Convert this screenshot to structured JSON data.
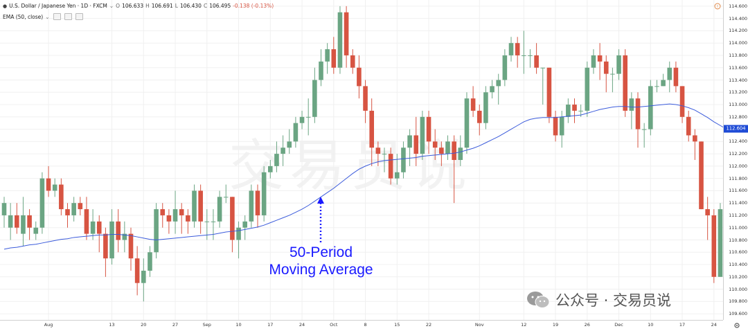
{
  "header": {
    "symbol": "U.S. Dollar / Japanese Yen · 1D · FXCM",
    "ohlc": {
      "o_label": "O",
      "o": "106.633",
      "h_label": "H",
      "h": "106.691",
      "l_label": "L",
      "l": "106.430",
      "c_label": "C",
      "c": "106.495",
      "change": "-0.138 (-0.13%)"
    },
    "indicator": "EMA (50, close)"
  },
  "annotation": {
    "line1": "50-Period",
    "line2": "Moving Average"
  },
  "watermark": {
    "text": "交易员说"
  },
  "brand": {
    "text": "公众号 · 交易员说"
  },
  "last_price_label": "112.604",
  "colors": {
    "up": "#6ba583",
    "down": "#d75442",
    "ema": "#3b5bdb",
    "annotation": "#1a1aff",
    "last_price_bg": "#1e4bd6"
  },
  "icons": [
    "dropdown-icon",
    "eye-icon",
    "settings-icon",
    "alert-icon",
    "gear-icon",
    "wechat-icon"
  ],
  "chart_data": {
    "type": "candlestick",
    "ylim": [
      109.5,
      114.7
    ],
    "y_ticks": [
      "109.600",
      "109.800",
      "110.000",
      "110.200",
      "110.400",
      "110.600",
      "110.800",
      "111.000",
      "111.200",
      "111.400",
      "111.600",
      "111.800",
      "112.000",
      "112.200",
      "112.400",
      "112.600",
      "112.800",
      "113.000",
      "113.200",
      "113.400",
      "113.600",
      "113.800",
      "114.000",
      "114.200",
      "114.400",
      "114.600"
    ],
    "x_ticks": [
      {
        "label": "Aug",
        "i": 7
      },
      {
        "label": "13",
        "i": 17
      },
      {
        "label": "20",
        "i": 22
      },
      {
        "label": "27",
        "i": 27
      },
      {
        "label": "Sep",
        "i": 32
      },
      {
        "label": "10",
        "i": 37
      },
      {
        "label": "17",
        "i": 42
      },
      {
        "label": "24",
        "i": 47
      },
      {
        "label": "Oct",
        "i": 52
      },
      {
        "label": "8",
        "i": 57
      },
      {
        "label": "15",
        "i": 62
      },
      {
        "label": "22",
        "i": 67
      },
      {
        "label": "Nov",
        "i": 75
      },
      {
        "label": "12",
        "i": 82
      },
      {
        "label": "19",
        "i": 87
      },
      {
        "label": "26",
        "i": 92
      },
      {
        "label": "Dec",
        "i": 97
      },
      {
        "label": "10",
        "i": 102
      },
      {
        "label": "17",
        "i": 107
      },
      {
        "label": "24",
        "i": 112
      }
    ],
    "candles": [
      [
        111.2,
        111.4,
        111.0,
        111.5
      ],
      [
        111.0,
        111.2,
        110.8,
        111.4
      ],
      [
        111.2,
        111.0,
        110.9,
        111.4
      ],
      [
        110.9,
        111.2,
        110.7,
        111.5
      ],
      [
        111.2,
        111.0,
        110.8,
        111.3
      ],
      [
        110.9,
        111.0,
        110.8,
        111.1
      ],
      [
        111.0,
        111.8,
        110.9,
        111.9
      ],
      [
        111.8,
        111.6,
        111.5,
        112.0
      ],
      [
        111.6,
        111.7,
        111.5,
        111.8
      ],
      [
        111.7,
        111.3,
        111.2,
        111.8
      ],
      [
        111.3,
        111.2,
        111.0,
        111.4
      ],
      [
        111.2,
        111.4,
        111.1,
        111.5
      ],
      [
        111.4,
        111.3,
        111.2,
        111.5
      ],
      [
        111.3,
        110.9,
        110.8,
        111.5
      ],
      [
        110.9,
        111.1,
        110.8,
        111.3
      ],
      [
        111.1,
        110.9,
        110.6,
        111.2
      ],
      [
        110.9,
        110.5,
        110.2,
        111.0
      ],
      [
        110.5,
        111.1,
        110.4,
        111.3
      ],
      [
        111.1,
        110.8,
        110.6,
        111.3
      ],
      [
        110.8,
        110.9,
        110.6,
        111.1
      ],
      [
        110.9,
        110.5,
        110.3,
        111.0
      ],
      [
        110.5,
        110.1,
        109.9,
        110.7
      ],
      [
        110.1,
        110.3,
        109.8,
        110.5
      ],
      [
        110.3,
        110.6,
        110.2,
        110.7
      ],
      [
        110.6,
        111.3,
        110.5,
        111.4
      ],
      [
        111.3,
        111.2,
        111.0,
        111.4
      ],
      [
        111.2,
        111.1,
        110.9,
        111.3
      ],
      [
        111.1,
        111.3,
        110.9,
        111.6
      ],
      [
        111.3,
        111.2,
        110.9,
        111.4
      ],
      [
        111.2,
        111.1,
        110.9,
        111.3
      ],
      [
        111.1,
        111.6,
        111.0,
        111.7
      ],
      [
        111.6,
        111.1,
        110.9,
        111.7
      ],
      [
        111.1,
        111.1,
        110.8,
        111.3
      ],
      [
        111.1,
        111.1,
        110.8,
        111.3
      ],
      [
        111.1,
        111.5,
        111.0,
        111.6
      ],
      [
        111.5,
        111.5,
        111.4,
        111.7
      ],
      [
        111.5,
        110.8,
        110.6,
        111.5
      ],
      [
        110.8,
        111.0,
        110.5,
        111.1
      ],
      [
        111.0,
        111.1,
        110.8,
        111.2
      ],
      [
        111.1,
        111.6,
        111.0,
        111.7
      ],
      [
        111.6,
        111.2,
        111.0,
        111.7
      ],
      [
        111.2,
        111.9,
        111.1,
        112.0
      ],
      [
        111.9,
        112.0,
        111.8,
        112.1
      ],
      [
        112.0,
        112.2,
        111.9,
        112.4
      ],
      [
        112.2,
        112.3,
        112.0,
        112.5
      ],
      [
        112.3,
        112.4,
        112.2,
        112.6
      ],
      [
        112.4,
        112.7,
        112.3,
        112.8
      ],
      [
        112.7,
        112.8,
        112.6,
        112.9
      ],
      [
        112.8,
        112.8,
        112.5,
        113.1
      ],
      [
        112.8,
        113.4,
        112.7,
        113.6
      ],
      [
        113.4,
        113.7,
        113.3,
        113.9
      ],
      [
        113.7,
        113.9,
        113.5,
        114.0
      ],
      [
        113.9,
        113.6,
        113.5,
        114.1
      ],
      [
        113.6,
        114.5,
        113.5,
        114.6
      ],
      [
        114.5,
        113.8,
        113.6,
        114.6
      ],
      [
        113.8,
        113.6,
        113.5,
        113.9
      ],
      [
        113.6,
        113.3,
        113.1,
        113.8
      ],
      [
        113.3,
        112.9,
        112.7,
        113.4
      ],
      [
        112.9,
        112.3,
        112.0,
        113.1
      ],
      [
        112.3,
        112.2,
        112.0,
        112.4
      ],
      [
        112.2,
        112.2,
        111.9,
        112.3
      ],
      [
        112.2,
        111.8,
        111.7,
        112.3
      ],
      [
        111.8,
        111.9,
        111.7,
        112.2
      ],
      [
        111.9,
        112.3,
        111.8,
        112.4
      ],
      [
        112.3,
        112.5,
        112.0,
        112.6
      ],
      [
        112.5,
        112.2,
        112.0,
        112.8
      ],
      [
        112.2,
        112.8,
        112.1,
        112.9
      ],
      [
        112.8,
        112.4,
        112.2,
        112.9
      ],
      [
        112.4,
        112.3,
        112.1,
        112.6
      ],
      [
        112.3,
        112.2,
        112.0,
        112.4
      ],
      [
        112.2,
        112.4,
        112.1,
        112.5
      ],
      [
        112.4,
        112.1,
        111.4,
        112.5
      ],
      [
        112.1,
        112.3,
        112.0,
        112.5
      ],
      [
        112.3,
        113.1,
        112.2,
        113.2
      ],
      [
        113.1,
        112.9,
        112.8,
        113.3
      ],
      [
        112.9,
        112.7,
        112.5,
        113.0
      ],
      [
        112.7,
        113.2,
        112.6,
        113.3
      ],
      [
        113.2,
        113.3,
        113.1,
        113.4
      ],
      [
        113.3,
        113.4,
        113.0,
        113.5
      ],
      [
        113.4,
        113.8,
        113.3,
        113.9
      ],
      [
        113.8,
        114.0,
        113.7,
        114.1
      ],
      [
        114.0,
        113.8,
        113.6,
        114.1
      ],
      [
        113.8,
        113.8,
        113.5,
        114.2
      ],
      [
        113.8,
        113.8,
        113.6,
        113.9
      ],
      [
        113.8,
        113.6,
        113.5,
        114.0
      ],
      [
        113.6,
        113.6,
        113.0,
        113.6
      ],
      [
        113.6,
        112.8,
        112.7,
        113.6
      ],
      [
        112.8,
        112.5,
        112.4,
        112.9
      ],
      [
        112.5,
        112.8,
        112.3,
        112.9
      ],
      [
        112.8,
        113.0,
        112.7,
        113.1
      ],
      [
        113.0,
        112.9,
        112.7,
        113.1
      ],
      [
        112.9,
        112.9,
        112.8,
        113.0
      ],
      [
        112.9,
        113.6,
        112.8,
        113.7
      ],
      [
        113.6,
        113.8,
        113.5,
        113.9
      ],
      [
        113.8,
        113.7,
        113.4,
        114.0
      ],
      [
        113.7,
        113.5,
        113.2,
        113.8
      ],
      [
        113.5,
        113.5,
        113.2,
        113.6
      ],
      [
        113.5,
        113.8,
        113.4,
        113.9
      ],
      [
        113.8,
        112.9,
        112.8,
        113.9
      ],
      [
        112.9,
        113.1,
        112.6,
        113.2
      ],
      [
        113.1,
        112.6,
        112.3,
        113.2
      ],
      [
        112.6,
        112.6,
        112.3,
        112.7
      ],
      [
        112.6,
        113.3,
        112.5,
        113.4
      ],
      [
        113.3,
        113.3,
        113.2,
        113.4
      ],
      [
        113.3,
        113.4,
        113.3,
        113.5
      ],
      [
        113.4,
        113.6,
        113.2,
        113.7
      ],
      [
        113.6,
        113.3,
        113.2,
        113.7
      ],
      [
        113.3,
        112.8,
        112.7,
        113.3
      ],
      [
        112.8,
        112.5,
        112.4,
        112.9
      ],
      [
        112.5,
        112.4,
        112.1,
        112.6
      ],
      [
        112.4,
        111.3,
        111.3,
        112.4
      ],
      [
        111.3,
        111.2,
        110.8,
        111.5
      ],
      [
        111.2,
        110.2,
        110.1,
        111.3
      ],
      [
        110.2,
        111.3,
        110.2,
        111.4
      ],
      [
        111.3,
        110.9,
        110.5,
        111.4
      ]
    ],
    "ema": [
      110.65,
      110.67,
      110.68,
      110.7,
      110.72,
      110.73,
      110.75,
      110.77,
      110.79,
      110.81,
      110.82,
      110.84,
      110.85,
      110.86,
      110.87,
      110.88,
      110.88,
      110.89,
      110.89,
      110.88,
      110.87,
      110.85,
      110.83,
      110.81,
      110.8,
      110.81,
      110.82,
      110.83,
      110.84,
      110.85,
      110.86,
      110.87,
      110.88,
      110.89,
      110.91,
      110.93,
      110.94,
      110.95,
      110.97,
      110.99,
      111.01,
      111.04,
      111.08,
      111.12,
      111.16,
      111.2,
      111.25,
      111.3,
      111.36,
      111.43,
      111.5,
      111.57,
      111.64,
      111.72,
      111.8,
      111.88,
      111.95,
      112.0,
      112.04,
      112.07,
      112.09,
      112.1,
      112.11,
      112.12,
      112.13,
      112.14,
      112.16,
      112.17,
      112.18,
      112.19,
      112.2,
      112.21,
      112.23,
      112.26,
      112.29,
      112.33,
      112.38,
      112.43,
      112.48,
      112.54,
      112.6,
      112.66,
      112.72,
      112.76,
      112.78,
      112.79,
      112.79,
      112.79,
      112.8,
      112.81,
      112.82,
      112.83,
      112.86,
      112.89,
      112.92,
      112.94,
      112.96,
      112.97,
      112.97,
      112.96,
      112.96,
      112.97,
      112.98,
      112.99,
      113.0,
      113.01,
      113.0,
      112.98,
      112.95,
      112.91,
      112.85,
      112.79,
      112.72,
      112.66,
      112.6
    ]
  }
}
